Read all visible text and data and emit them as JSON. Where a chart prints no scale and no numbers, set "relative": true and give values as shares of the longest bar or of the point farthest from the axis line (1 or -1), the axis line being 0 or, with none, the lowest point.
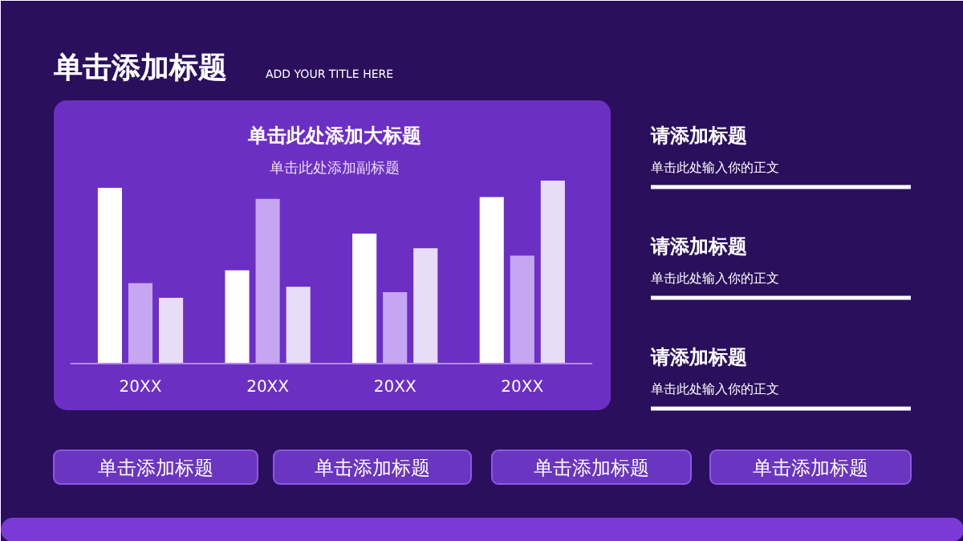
{
  "chart_data": {
    "type": "bar",
    "title": "单击此处添加大标题",
    "subtitle": "单击此处添加副标题",
    "categories": [
      "20XX",
      "20XX",
      "20XX",
      "20XX"
    ],
    "relative": true,
    "series": [
      {
        "color": "#ffffff",
        "values": [
          0.96,
          0.51,
          0.71,
          0.91
        ]
      },
      {
        "color": "#c5a6f0",
        "values": [
          0.44,
          0.9,
          0.39,
          0.59
        ]
      },
      {
        "color": "#e8dcf7",
        "values": [
          0.36,
          0.42,
          0.63,
          1.0
        ]
      }
    ],
    "annotations": [
      "单击添加标题",
      "ADD YOUR TITLE HERE",
      "请添加标题",
      "单击此处输入你的正文",
      "请添加标题",
      "单击此处输入你的正文",
      "请添加标题",
      "单击此处输入你的正文",
      "单击添加标题",
      "单击添加标题",
      "单击添加标题",
      "单击添加标题"
    ]
  }
}
